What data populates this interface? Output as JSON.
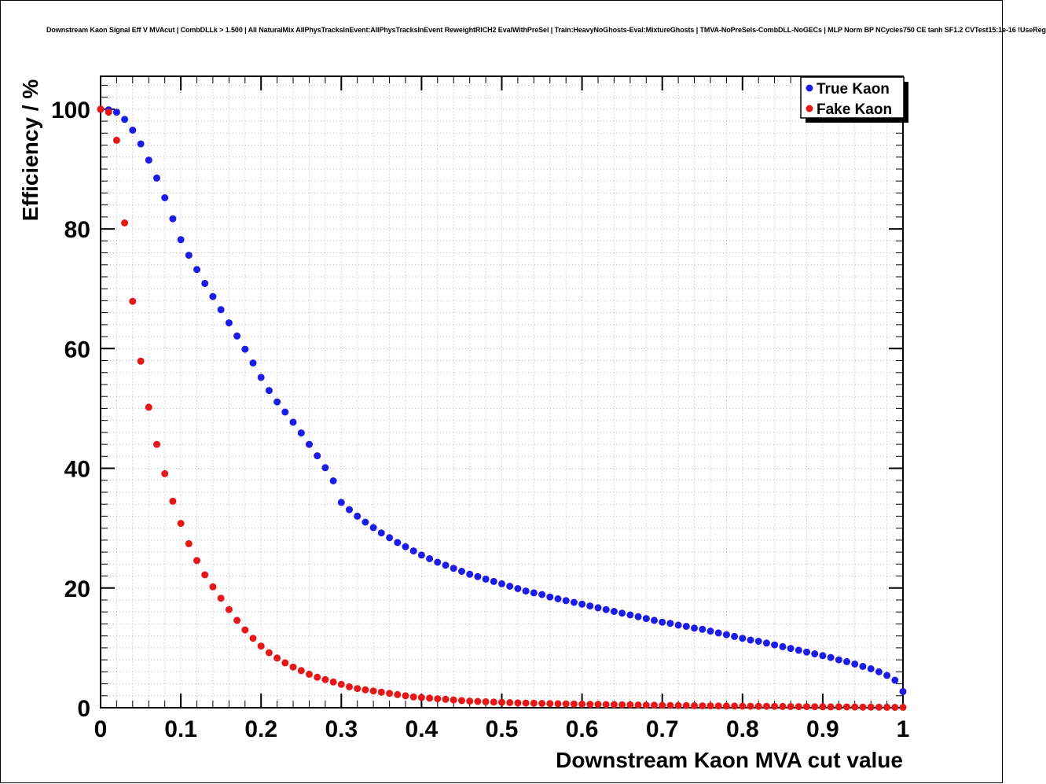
{
  "chart_data": {
    "type": "scatter",
    "title": "Downstream Kaon Signal Eff V MVAcut | CombDLLk > 1.500 | All NaturalMix AllPhysTracksInEvent:AllPhysTracksInEvent ReweightRICH2 EvalWithPreSel | Train:HeavyNoGhosts-Eval:MixtureGhosts | TMVA-NoPreSels-CombDLL-NoGECs | MLP Norm BP NCycles750 CE tanh SF1.2 CVTest15:1e-16 !UseReg",
    "xlabel": "Downstream Kaon MVA cut value",
    "ylabel": "Efficiency / %",
    "xlim": [
      0,
      1
    ],
    "ylim": [
      0,
      105.5
    ],
    "grid": true,
    "x_major_ticks": [
      0,
      0.1,
      0.2,
      0.3,
      0.4,
      0.5,
      0.6,
      0.7,
      0.8,
      0.9,
      1
    ],
    "x_tick_labels": [
      "0",
      "0.1",
      "0.2",
      "0.3",
      "0.4",
      "0.5",
      "0.6",
      "0.7",
      "0.8",
      "0.9",
      "1"
    ],
    "x_minor_step": 0.02,
    "y_major_ticks": [
      0,
      20,
      40,
      60,
      80,
      100
    ],
    "y_tick_labels": [
      "0",
      "20",
      "40",
      "60",
      "80",
      "100"
    ],
    "y_minor_step": 2,
    "legend": {
      "position": "top-right",
      "entries": [
        "True Kaon",
        "Fake Kaon"
      ]
    },
    "x": [
      0,
      0.01,
      0.02,
      0.03,
      0.04,
      0.05,
      0.06,
      0.07,
      0.08,
      0.09,
      0.1,
      0.11,
      0.12,
      0.13,
      0.14,
      0.15,
      0.16,
      0.17,
      0.18,
      0.19,
      0.2,
      0.21,
      0.22,
      0.23,
      0.24,
      0.25,
      0.26,
      0.27,
      0.28,
      0.29,
      0.3,
      0.31,
      0.32,
      0.33,
      0.34,
      0.35,
      0.36,
      0.37,
      0.38,
      0.39,
      0.4,
      0.41,
      0.42,
      0.43,
      0.44,
      0.45,
      0.46,
      0.47,
      0.48,
      0.49,
      0.5,
      0.51,
      0.52,
      0.53,
      0.54,
      0.55,
      0.56,
      0.57,
      0.58,
      0.59,
      0.6,
      0.61,
      0.62,
      0.63,
      0.64,
      0.65,
      0.66,
      0.67,
      0.68,
      0.69,
      0.7,
      0.71,
      0.72,
      0.73,
      0.74,
      0.75,
      0.76,
      0.77,
      0.78,
      0.79,
      0.8,
      0.81,
      0.82,
      0.83,
      0.84,
      0.85,
      0.86,
      0.87,
      0.88,
      0.89,
      0.9,
      0.91,
      0.92,
      0.93,
      0.94,
      0.95,
      0.96,
      0.97,
      0.98,
      0.99,
      1
    ],
    "series": [
      {
        "name": "True Kaon",
        "color": "#1c1ce6",
        "marker": "circle",
        "values": [
          100,
          99.9,
          99.5,
          98.3,
          96.5,
          94.2,
          91.5,
          88.5,
          85.2,
          81.7,
          78.2,
          75.6,
          73.2,
          70.9,
          68.7,
          66.5,
          64.3,
          62.1,
          59.9,
          57.6,
          55.2,
          53,
          51.1,
          49.4,
          47.7,
          45.9,
          44,
          42.1,
          40.1,
          37.9,
          34.3,
          33.1,
          32,
          31,
          30.1,
          29.2,
          28.4,
          27.6,
          26.9,
          26.2,
          25.5,
          24.9,
          24.3,
          23.8,
          23.3,
          22.8,
          22.3,
          21.9,
          21.5,
          21.1,
          20.7,
          20.3,
          19.9,
          19.5,
          19.2,
          18.9,
          18.5,
          18.2,
          17.9,
          17.6,
          17.3,
          17,
          16.7,
          16.4,
          16.1,
          15.8,
          15.5,
          15.2,
          14.9,
          14.6,
          14.3,
          14.1,
          13.8,
          13.6,
          13.3,
          13.1,
          12.8,
          12.5,
          12.2,
          11.9,
          11.6,
          11.3,
          11.1,
          10.8,
          10.5,
          10.2,
          9.9,
          9.6,
          9.3,
          9,
          8.7,
          8.4,
          8,
          7.7,
          7.3,
          6.9,
          6.5,
          6,
          5.4,
          4.6,
          2.7
        ]
      },
      {
        "name": "Fake Kaon",
        "color": "#e61717",
        "marker": "circle",
        "values": [
          100,
          99.5,
          94.8,
          81,
          67.9,
          57.9,
          50.2,
          44,
          39.1,
          34.5,
          30.8,
          27.4,
          24.6,
          22.2,
          20.2,
          18.3,
          16.4,
          14.6,
          13,
          11.6,
          10.3,
          9.2,
          8.3,
          7.5,
          6.8,
          6.2,
          5.6,
          5.1,
          4.7,
          4.3,
          3.9,
          3.5,
          3.2,
          3,
          2.8,
          2.6,
          2.4,
          2.2,
          2,
          1.8,
          1.7,
          1.6,
          1.5,
          1.4,
          1.3,
          1.2,
          1.1,
          1.05,
          1,
          0.95,
          0.9,
          0.85,
          0.8,
          0.78,
          0.75,
          0.72,
          0.7,
          0.67,
          0.65,
          0.62,
          0.6,
          0.58,
          0.56,
          0.54,
          0.52,
          0.5,
          0.48,
          0.46,
          0.44,
          0.42,
          0.4,
          0.38,
          0.37,
          0.35,
          0.34,
          0.32,
          0.31,
          0.3,
          0.28,
          0.27,
          0.26,
          0.25,
          0.24,
          0.23,
          0.22,
          0.21,
          0.2,
          0.19,
          0.18,
          0.17,
          0.16,
          0.15,
          0.14,
          0.13,
          0.12,
          0.11,
          0.1,
          0.09,
          0.08,
          0.07,
          0.06
        ]
      }
    ]
  }
}
